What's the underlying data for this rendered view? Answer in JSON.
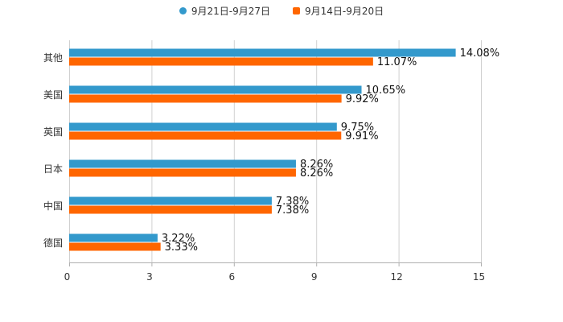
{
  "chart_data": {
    "type": "bar",
    "orientation": "horizontal",
    "title": "",
    "xlabel": "",
    "ylabel": "",
    "xlim": [
      0,
      15
    ],
    "x_ticks": [
      0,
      3,
      6,
      9,
      12,
      15
    ],
    "x_tick_labels": [
      "0",
      "3",
      "6",
      "9",
      "12",
      "15"
    ],
    "grid": true,
    "legend_position": "top-center",
    "value_suffix": "%",
    "categories": [
      "其他",
      "美国",
      "英国",
      "日本",
      "中国",
      "德国"
    ],
    "series": [
      {
        "name": "9月21日-9月27日",
        "color": "#3399cc",
        "marker": "dot",
        "values": [
          14.08,
          10.65,
          9.75,
          8.26,
          7.38,
          3.22
        ],
        "labels": [
          "14.08%",
          "10.65%",
          "9.75%",
          "8.26%",
          "7.38%",
          "3.22%"
        ]
      },
      {
        "name": "9月14日-9月20日",
        "color": "#ff6600",
        "marker": "square",
        "values": [
          11.07,
          9.92,
          9.91,
          8.26,
          7.38,
          3.33
        ],
        "labels": [
          "11.07%",
          "9.92%",
          "9.91%",
          "8.26%",
          "7.38%",
          "3.33%"
        ]
      }
    ]
  }
}
